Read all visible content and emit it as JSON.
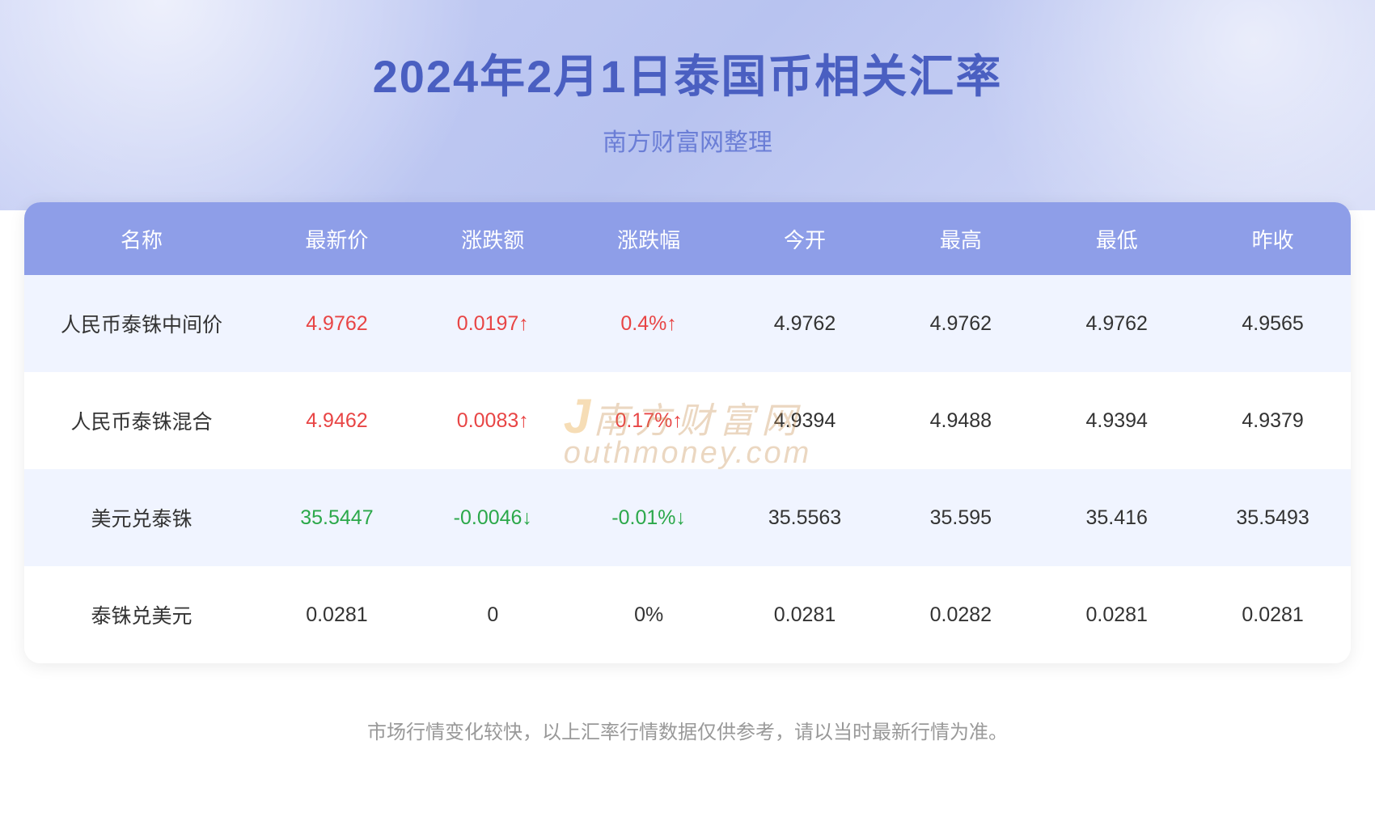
{
  "header": {
    "title": "2024年2月1日泰国币相关汇率",
    "subtitle": "南方财富网整理",
    "title_color": "#4a5fc1",
    "subtitle_color": "#6b7ed6",
    "bg_gradient_start": "#c8d0f5",
    "bg_gradient_end": "#d5dbf7"
  },
  "table": {
    "header_bg": "#8e9ee8",
    "header_text_color": "#ffffff",
    "row_odd_bg": "#f0f4ff",
    "row_even_bg": "#ffffff",
    "up_color": "#e84545",
    "down_color": "#2ba84a",
    "neutral_color": "#333333",
    "columns": [
      "名称",
      "最新价",
      "涨跌额",
      "涨跌幅",
      "今开",
      "最高",
      "最低",
      "昨收"
    ],
    "rows": [
      {
        "name": "人民币泰铢中间价",
        "latest": "4.9762",
        "change": "0.0197↑",
        "change_pct": "0.4%↑",
        "open": "4.9762",
        "high": "4.9762",
        "low": "4.9762",
        "prev_close": "4.9565",
        "direction": "up"
      },
      {
        "name": "人民币泰铢混合",
        "latest": "4.9462",
        "change": "0.0083↑",
        "change_pct": "0.17%↑",
        "open": "4.9394",
        "high": "4.9488",
        "low": "4.9394",
        "prev_close": "4.9379",
        "direction": "up"
      },
      {
        "name": "美元兑泰铢",
        "latest": "35.5447",
        "change": "-0.0046↓",
        "change_pct": "-0.01%↓",
        "open": "35.5563",
        "high": "35.595",
        "low": "35.416",
        "prev_close": "35.5493",
        "direction": "down"
      },
      {
        "name": "泰铢兑美元",
        "latest": "0.0281",
        "change": "0",
        "change_pct": "0%",
        "open": "0.0281",
        "high": "0.0282",
        "low": "0.0281",
        "prev_close": "0.0281",
        "direction": "neutral"
      }
    ]
  },
  "watermark": {
    "line1": "南方财富网",
    "line2": "outhmoney.com",
    "color": "#c89050"
  },
  "footer": {
    "note": "市场行情变化较快，以上汇率行情数据仅供参考，请以当时最新行情为准。",
    "color": "#999999"
  }
}
